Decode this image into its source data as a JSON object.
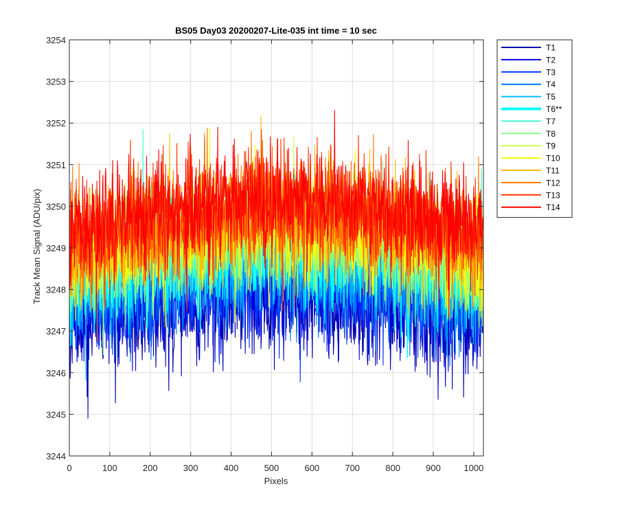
{
  "chart_data": {
    "type": "line",
    "title": "BS05 Day03 20200207-Lite-035 int time = 10 sec",
    "xlabel": "Pixels",
    "ylabel": "Track Mean Signal (ADU/pix)",
    "xlim": [
      0,
      1024
    ],
    "ylim": [
      3244,
      3254
    ],
    "x_ticks": [
      0,
      100,
      200,
      300,
      400,
      500,
      600,
      700,
      800,
      900,
      1000
    ],
    "x_tick_labels": [
      "0",
      "100",
      "200",
      "300",
      "400",
      "500",
      "600",
      "700",
      "800",
      "900",
      "1000"
    ],
    "y_ticks": [
      3244,
      3245,
      3246,
      3247,
      3248,
      3249,
      3250,
      3251,
      3252,
      3253,
      3254
    ],
    "y_tick_labels": [
      "3244",
      "3245",
      "3246",
      "3247",
      "3248",
      "3249",
      "3250",
      "3251",
      "3252",
      "3253",
      "3254"
    ],
    "grid": true,
    "legend_position": "outside-top-right",
    "x_resolution": 1,
    "series": [
      {
        "name": "T1",
        "color": "#0000AA",
        "trend": [
          [
            0,
            3247.3
          ],
          [
            250,
            3247.6
          ],
          [
            500,
            3247.8
          ],
          [
            750,
            3247.6
          ],
          [
            1024,
            3247.2
          ]
        ],
        "sd": 0.65,
        "seed": 11
      },
      {
        "name": "T2",
        "color": "#0000D4",
        "trend": [
          [
            0,
            3247.5
          ],
          [
            250,
            3247.8
          ],
          [
            500,
            3248.0
          ],
          [
            750,
            3247.8
          ],
          [
            1024,
            3247.4
          ]
        ],
        "sd": 0.6,
        "seed": 12
      },
      {
        "name": "T3",
        "color": "#0033FF",
        "trend": [
          [
            0,
            3247.7
          ],
          [
            250,
            3248.0
          ],
          [
            500,
            3248.2
          ],
          [
            750,
            3248.0
          ],
          [
            1024,
            3247.6
          ]
        ],
        "sd": 0.6,
        "seed": 13
      },
      {
        "name": "T4",
        "color": "#0077FF",
        "trend": [
          [
            0,
            3247.9
          ],
          [
            250,
            3248.2
          ],
          [
            500,
            3248.4
          ],
          [
            750,
            3248.2
          ],
          [
            1024,
            3247.8
          ]
        ],
        "sd": 0.6,
        "seed": 14
      },
      {
        "name": "T5",
        "color": "#00BBFF",
        "trend": [
          [
            0,
            3248.1
          ],
          [
            250,
            3248.5
          ],
          [
            500,
            3248.7
          ],
          [
            750,
            3248.5
          ],
          [
            1024,
            3248.0
          ]
        ],
        "sd": 0.6,
        "seed": 15
      },
      {
        "name": "T6**",
        "color": "#00FFFF",
        "trend": [
          [
            0,
            3248.3
          ],
          [
            250,
            3248.8
          ],
          [
            500,
            3249.1
          ],
          [
            750,
            3248.9
          ],
          [
            1024,
            3248.3
          ]
        ],
        "sd": 0.65,
        "seed": 16,
        "emphasis": true
      },
      {
        "name": "T7",
        "color": "#44FFCC",
        "trend": [
          [
            0,
            3248.4
          ],
          [
            250,
            3249.0
          ],
          [
            500,
            3249.3
          ],
          [
            750,
            3249.1
          ],
          [
            1024,
            3248.5
          ]
        ],
        "sd": 0.6,
        "seed": 17
      },
      {
        "name": "T8",
        "color": "#88FF88",
        "trend": [
          [
            0,
            3248.5
          ],
          [
            250,
            3249.1
          ],
          [
            500,
            3249.4
          ],
          [
            750,
            3249.2
          ],
          [
            1024,
            3248.6
          ]
        ],
        "sd": 0.6,
        "seed": 18
      },
      {
        "name": "T9",
        "color": "#CCFF44",
        "trend": [
          [
            0,
            3248.6
          ],
          [
            250,
            3249.2
          ],
          [
            500,
            3249.5
          ],
          [
            750,
            3249.3
          ],
          [
            1024,
            3248.7
          ]
        ],
        "sd": 0.6,
        "seed": 19
      },
      {
        "name": "T10",
        "color": "#FFFF00",
        "trend": [
          [
            0,
            3248.7
          ],
          [
            250,
            3249.3
          ],
          [
            500,
            3249.6
          ],
          [
            750,
            3249.4
          ],
          [
            1024,
            3248.8
          ]
        ],
        "sd": 0.6,
        "seed": 20
      },
      {
        "name": "T11",
        "color": "#FFBB00",
        "trend": [
          [
            0,
            3248.8
          ],
          [
            250,
            3249.4
          ],
          [
            500,
            3249.7
          ],
          [
            750,
            3249.5
          ],
          [
            1024,
            3248.9
          ]
        ],
        "sd": 0.6,
        "seed": 21
      },
      {
        "name": "T12",
        "color": "#FF7700",
        "trend": [
          [
            0,
            3249.0
          ],
          [
            250,
            3249.6
          ],
          [
            500,
            3249.9
          ],
          [
            750,
            3249.7
          ],
          [
            1024,
            3249.1
          ]
        ],
        "sd": 0.62,
        "seed": 22
      },
      {
        "name": "T13",
        "color": "#FF3300",
        "trend": [
          [
            0,
            3249.2
          ],
          [
            250,
            3249.8
          ],
          [
            500,
            3250.1
          ],
          [
            750,
            3249.9
          ],
          [
            1024,
            3249.3
          ]
        ],
        "sd": 0.62,
        "seed": 23
      },
      {
        "name": "T14",
        "color": "#FF0000",
        "trend": [
          [
            0,
            3249.3
          ],
          [
            250,
            3249.9
          ],
          [
            500,
            3250.2
          ],
          [
            750,
            3250.0
          ],
          [
            1024,
            3249.4
          ]
        ],
        "sd": 0.6,
        "seed": 24
      }
    ]
  }
}
